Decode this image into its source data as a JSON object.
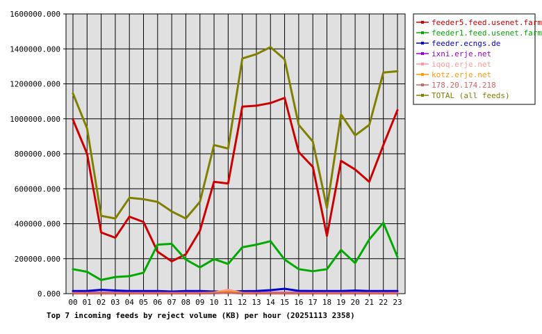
{
  "chart_data": {
    "type": "line",
    "title": "Top 7 incoming feeds by reject volume (KB) per hour (20251113 2358)",
    "xlabel": "",
    "ylabel": "",
    "categories": [
      "00",
      "01",
      "02",
      "03",
      "04",
      "05",
      "06",
      "07",
      "08",
      "09",
      "10",
      "11",
      "12",
      "13",
      "14",
      "15",
      "16",
      "17",
      "18",
      "19",
      "20",
      "21",
      "22",
      "23"
    ],
    "ylim": [
      0,
      1600000
    ],
    "yticks": [
      "0.000",
      "200000.000",
      "400000.000",
      "600000.000",
      "800000.000",
      "1000000.000",
      "1200000.000",
      "1400000.000",
      "1600000.000"
    ],
    "grid": true,
    "legend_position": "right",
    "series": [
      {
        "name": "feeder5.feed.usenet.farm",
        "color": "#cc0000",
        "values": [
          995000,
          800000,
          350000,
          320000,
          440000,
          410000,
          240000,
          185000,
          225000,
          360000,
          640000,
          630000,
          1070000,
          1075000,
          1090000,
          1120000,
          810000,
          725000,
          330000,
          760000,
          710000,
          640000,
          850000,
          1050000
        ]
      },
      {
        "name": "feeder1.feed.usenet.farm",
        "color": "#00aa00",
        "values": [
          140000,
          125000,
          78000,
          95000,
          100000,
          120000,
          280000,
          285000,
          195000,
          150000,
          198000,
          170000,
          265000,
          280000,
          300000,
          195000,
          140000,
          128000,
          140000,
          250000,
          175000,
          310000,
          405000,
          210000
        ]
      },
      {
        "name": "feeder.ecngs.de",
        "color": "#0000cc",
        "values": [
          15000,
          15000,
          22000,
          18000,
          15000,
          15000,
          15000,
          12000,
          15000,
          15000,
          12000,
          12000,
          14000,
          15000,
          20000,
          28000,
          16000,
          15000,
          15000,
          15000,
          18000,
          15000,
          15000,
          15000
        ]
      },
      {
        "name": "ixni.erje.net",
        "color": "#9900cc",
        "values": [
          5000,
          5000,
          5000,
          5000,
          5000,
          5000,
          5000,
          5000,
          5000,
          5000,
          5000,
          5000,
          5000,
          5000,
          5000,
          5000,
          5000,
          5000,
          5000,
          5000,
          5000,
          5000,
          5000,
          5000
        ]
      },
      {
        "name": "iqoq.erje.net",
        "color": "#ff9999",
        "values": [
          3000,
          3000,
          3000,
          3000,
          3000,
          3000,
          3000,
          3000,
          3000,
          3000,
          6000,
          22000,
          4000,
          3000,
          3000,
          3000,
          3000,
          3000,
          3000,
          3000,
          3000,
          3000,
          3000,
          3000
        ]
      },
      {
        "name": "kotz.erje.net",
        "color": "#ff9900",
        "values": [
          2000,
          2000,
          2000,
          2000,
          2000,
          2000,
          2000,
          2000,
          2000,
          2000,
          4000,
          12000,
          3000,
          2000,
          2000,
          2000,
          2000,
          2000,
          2000,
          2000,
          2000,
          2000,
          2000,
          2000
        ]
      },
      {
        "name": "178.20.174.218",
        "color": "#cc6666",
        "values": [
          1000,
          1000,
          1000,
          1000,
          1000,
          1000,
          1000,
          1000,
          1000,
          1000,
          2000,
          5000,
          1000,
          1000,
          1000,
          1000,
          1000,
          1000,
          1000,
          1000,
          1000,
          1000,
          1000,
          1000
        ]
      },
      {
        "name": "TOTAL (all feeds)",
        "color": "#808000",
        "values": [
          1145000,
          945000,
          445000,
          430000,
          548000,
          540000,
          525000,
          470000,
          430000,
          525000,
          850000,
          830000,
          1345000,
          1370000,
          1410000,
          1340000,
          965000,
          870000,
          490000,
          1025000,
          905000,
          965000,
          1265000,
          1272000
        ]
      }
    ]
  }
}
